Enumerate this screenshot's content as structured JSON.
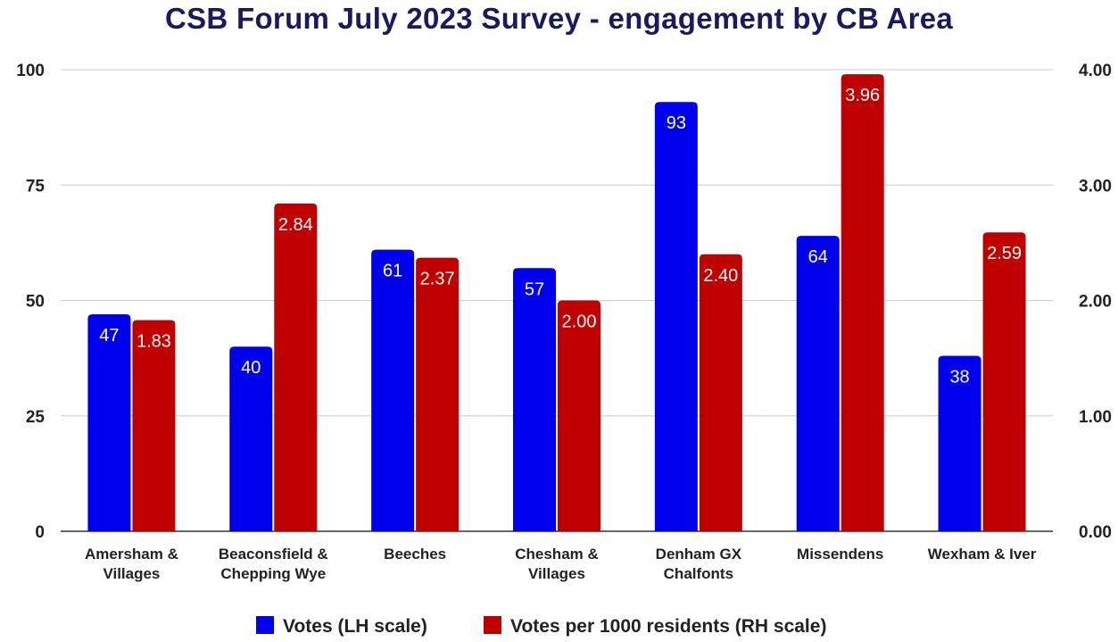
{
  "chart_data": {
    "type": "bar",
    "title": "CSB Forum July 2023 Survey - engagement by CB Area",
    "categories": [
      [
        "Amersham &",
        "Villages"
      ],
      [
        "Beaconsfield &",
        "Chepping Wye"
      ],
      [
        "Beeches"
      ],
      [
        "Chesham &",
        "Villages"
      ],
      [
        "Denham GX",
        "Chalfonts"
      ],
      [
        "Missendens"
      ],
      [
        "Wexham & Iver"
      ]
    ],
    "series": [
      {
        "name": "Votes (LH scale)",
        "axis": "left",
        "color": "#0000ee",
        "values": [
          47,
          40,
          61,
          57,
          93,
          64,
          38
        ],
        "labels": [
          "47",
          "40",
          "61",
          "57",
          "93",
          "64",
          "38"
        ]
      },
      {
        "name": "Votes per 1000 residents (RH scale)",
        "axis": "right",
        "color": "#c00000",
        "values": [
          1.83,
          2.84,
          2.37,
          2.0,
          2.4,
          3.96,
          2.59
        ],
        "labels": [
          "1.83",
          "2.84",
          "2.37",
          "2.00",
          "2.40",
          "3.96",
          "2.59"
        ]
      }
    ],
    "y_left": {
      "range": [
        0,
        100
      ],
      "ticks": [
        "0",
        "25",
        "50",
        "75",
        "100"
      ]
    },
    "y_right": {
      "range": [
        0,
        4
      ],
      "ticks": [
        "0.00",
        "1.00",
        "2.00",
        "3.00",
        "4.00"
      ]
    },
    "grid": true,
    "legend_position": "bottom"
  }
}
